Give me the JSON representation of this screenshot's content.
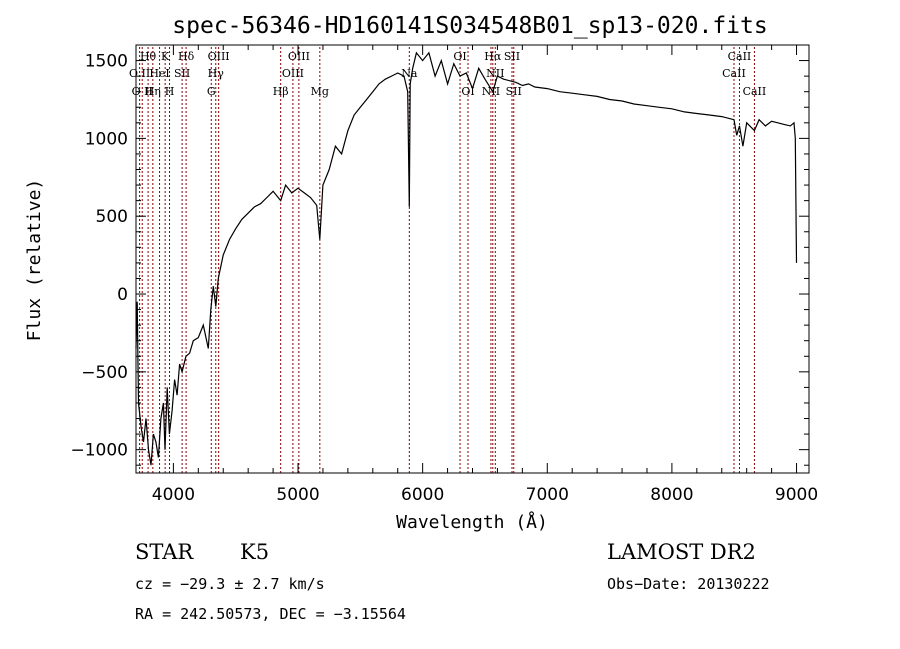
{
  "chart_data": {
    "type": "line",
    "title": "spec-56346-HD160141S034548B01_sp13-020.fits",
    "xlabel": "Wavelength (Å)",
    "ylabel": "Flux (relative)",
    "xlim": [
      3700,
      9100
    ],
    "ylim": [
      -1150,
      1600
    ],
    "xticks": [
      4000,
      5000,
      6000,
      7000,
      8000,
      9000
    ],
    "yticks": [
      -1000,
      -500,
      0,
      500,
      1000,
      1500
    ],
    "grid": false,
    "series": [
      {
        "x": [
          3700,
          3710,
          3720,
          3740,
          3760,
          3780,
          3800,
          3820,
          3840,
          3860,
          3880,
          3900,
          3920,
          3933,
          3950,
          3968,
          3990,
          4010,
          4030,
          4050,
          4070,
          4100,
          4130,
          4160,
          4200,
          4240,
          4280,
          4300,
          4320,
          4340,
          4360,
          4400,
          4450,
          4500,
          4550,
          4600,
          4650,
          4700,
          4750,
          4800,
          4861,
          4900,
          4950,
          5000,
          5050,
          5100,
          5150,
          5175,
          5200,
          5250,
          5300,
          5350,
          5400,
          5450,
          5500,
          5550,
          5600,
          5650,
          5700,
          5750,
          5800,
          5850,
          5880,
          5893,
          5900,
          5920,
          5950,
          6000,
          6050,
          6100,
          6150,
          6200,
          6250,
          6300,
          6350,
          6400,
          6450,
          6500,
          6563,
          6600,
          6650,
          6700,
          6750,
          6800,
          6850,
          6900,
          7000,
          7100,
          7200,
          7300,
          7400,
          7500,
          7600,
          7700,
          7800,
          7900,
          8000,
          8100,
          8200,
          8300,
          8400,
          8498,
          8520,
          8542,
          8570,
          8600,
          8662,
          8700,
          8750,
          8800,
          8850,
          8900,
          8950,
          8980,
          8990,
          9000
        ],
        "values": [
          -350,
          -50,
          -700,
          -850,
          -950,
          -800,
          -1000,
          -1100,
          -900,
          -950,
          -1050,
          -800,
          -700,
          -1000,
          -600,
          -900,
          -750,
          -550,
          -650,
          -450,
          -500,
          -400,
          -380,
          -300,
          -280,
          -200,
          -350,
          -100,
          50,
          -80,
          100,
          250,
          350,
          420,
          480,
          520,
          560,
          580,
          620,
          660,
          600,
          700,
          650,
          680,
          650,
          620,
          570,
          350,
          700,
          800,
          950,
          900,
          1050,
          1150,
          1200,
          1250,
          1300,
          1350,
          1380,
          1400,
          1420,
          1400,
          1300,
          560,
          1350,
          1450,
          1550,
          1500,
          1550,
          1400,
          1500,
          1350,
          1480,
          1400,
          1420,
          1320,
          1450,
          1380,
          1300,
          1400,
          1380,
          1370,
          1360,
          1340,
          1350,
          1330,
          1320,
          1300,
          1290,
          1280,
          1270,
          1250,
          1240,
          1220,
          1210,
          1200,
          1190,
          1170,
          1160,
          1150,
          1140,
          1120,
          1020,
          1080,
          950,
          1100,
          1050,
          1120,
          1080,
          1110,
          1100,
          1090,
          1080,
          1100,
          1000,
          200
        ]
      }
    ],
    "lines": [
      {
        "x": 3729,
        "labels": [
          "O II"
        ],
        "row": [
          1
        ]
      },
      {
        "x": 3750,
        "labels": [
          "O II"
        ],
        "row": [
          2
        ]
      },
      {
        "x": 3797,
        "labels": [
          "Hθ"
        ],
        "row": [
          0
        ]
      },
      {
        "x": 3835,
        "labels": [
          "Hη"
        ],
        "row": [
          2
        ]
      },
      {
        "x": 3889,
        "labels": [
          "HeI"
        ],
        "row": [
          1
        ]
      },
      {
        "x": 3934,
        "labels": [
          "K"
        ],
        "row": [
          0
        ]
      },
      {
        "x": 3969,
        "labels": [
          "H"
        ],
        "row": [
          2
        ]
      },
      {
        "x": 4102,
        "labels": [
          "Hδ"
        ],
        "row": [
          0
        ]
      },
      {
        "x": 4070,
        "labels": [
          "SII"
        ],
        "row": [
          1
        ]
      },
      {
        "x": 4304,
        "labels": [
          "G"
        ],
        "row": [
          2
        ]
      },
      {
        "x": 4340,
        "labels": [
          "Hγ"
        ],
        "row": [
          1
        ]
      },
      {
        "x": 4363,
        "labels": [
          "OIII"
        ],
        "row": [
          0
        ]
      },
      {
        "x": 4861,
        "labels": [
          "Hβ"
        ],
        "row": [
          2
        ]
      },
      {
        "x": 4959,
        "labels": [
          "OIII"
        ],
        "row": [
          1
        ]
      },
      {
        "x": 5007,
        "labels": [
          "OIII"
        ],
        "row": [
          0
        ]
      },
      {
        "x": 5175,
        "labels": [
          "Mg"
        ],
        "row": [
          2
        ]
      },
      {
        "x": 5893,
        "labels": [
          "Na"
        ],
        "row": [
          1
        ]
      },
      {
        "x": 6300,
        "labels": [
          "OI"
        ],
        "row": [
          0
        ]
      },
      {
        "x": 6364,
        "labels": [
          "OI"
        ],
        "row": [
          2
        ]
      },
      {
        "x": 6548,
        "labels": [
          "NII"
        ],
        "row": [
          2
        ]
      },
      {
        "x": 6563,
        "labels": [
          "Hα"
        ],
        "row": [
          0
        ]
      },
      {
        "x": 6583,
        "labels": [
          "NII"
        ],
        "row": [
          1
        ]
      },
      {
        "x": 6717,
        "labels": [
          "SII"
        ],
        "row": [
          0
        ]
      },
      {
        "x": 6731,
        "labels": [
          "SII"
        ],
        "row": [
          2
        ]
      },
      {
        "x": 8498,
        "labels": [
          "CaII"
        ],
        "row": [
          1
        ]
      },
      {
        "x": 8542,
        "labels": [
          "CaII"
        ],
        "row": [
          0
        ]
      },
      {
        "x": 8662,
        "labels": [
          "CaII"
        ],
        "row": [
          2
        ]
      }
    ]
  },
  "info": {
    "class": "STAR",
    "subclass": "K5",
    "cz": "cz = −29.3 ± 2.7 km/s",
    "coords": "RA = 242.50573, DEC =  −3.15564",
    "survey": "LAMOST DR2",
    "obsdate": "Obs−Date: 20130222"
  },
  "colors": {
    "line_marker": "#8b0000",
    "spectrum": "#000000"
  }
}
